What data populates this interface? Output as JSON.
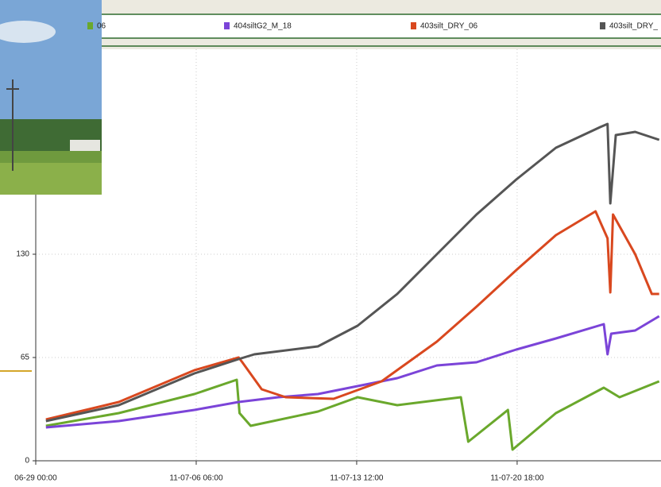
{
  "chart_data": {
    "type": "line",
    "series": [
      {
        "name": "06",
        "color": "#6aa82c",
        "x": [
          11,
          90,
          172,
          218,
          221,
          233,
          306,
          349,
          392,
          461,
          469,
          512,
          517,
          564,
          616,
          633,
          676
        ],
        "values": [
          22,
          30,
          42,
          51,
          30,
          22,
          31,
          40,
          35,
          40,
          12,
          32,
          7,
          30,
          46,
          40,
          50
        ]
      },
      {
        "name": "404siltG2_M_18",
        "color": "#7b44d8",
        "x": [
          11,
          90,
          172,
          220,
          263,
          306,
          349,
          392,
          435,
          478,
          521,
          564,
          616,
          620,
          624,
          650,
          676
        ],
        "values": [
          21,
          25,
          32,
          37,
          40,
          42,
          47,
          52,
          60,
          62,
          70,
          77,
          86,
          67,
          80,
          82,
          91
        ]
      },
      {
        "name": "403silt_DRY_06",
        "color": "#d9481f",
        "x": [
          11,
          90,
          172,
          220,
          224,
          245,
          271,
          323,
          375,
          435,
          478,
          521,
          564,
          607,
          620,
          623,
          626,
          650,
          668,
          676
        ],
        "values": [
          26,
          37,
          57,
          65,
          62,
          45,
          40,
          39,
          50,
          75,
          97,
          120,
          142,
          157,
          140,
          106,
          155,
          130,
          105,
          105
        ]
      },
      {
        "name": "403silt_DRY_",
        "color": "#555555",
        "x": [
          11,
          90,
          172,
          220,
          237,
          306,
          349,
          392,
          435,
          478,
          521,
          564,
          612,
          620,
          623,
          629,
          650,
          676
        ],
        "values": [
          25,
          35,
          55,
          64,
          67,
          72,
          85,
          105,
          130,
          155,
          177,
          197,
          210,
          212,
          162,
          205,
          207,
          202
        ]
      }
    ],
    "xlim": [
      0,
      678
    ],
    "xticks": [
      {
        "value": 0,
        "label": "06-29 00:00"
      },
      {
        "value": 174,
        "label": "11-07-06 06:00"
      },
      {
        "value": 348,
        "label": "11-07-13 12:00"
      },
      {
        "value": 522,
        "label": "11-07-20 18:00"
      }
    ],
    "ylim": [
      0,
      259
    ],
    "yticks": [
      0,
      65,
      130
    ],
    "grid": true
  }
}
